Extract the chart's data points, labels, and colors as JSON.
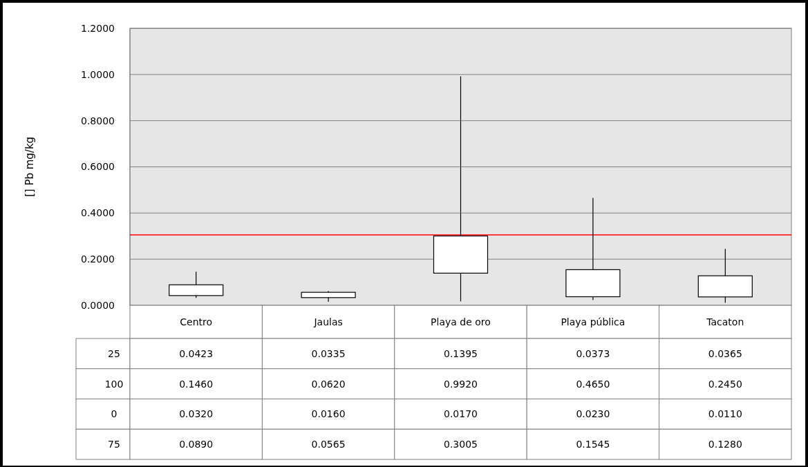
{
  "chart_data": {
    "type": "box",
    "ylabel": "[] Pb mg/kg",
    "categories": [
      "Centro",
      "Jaulas",
      "Playa de oro",
      "Playa pública",
      "Tacaton"
    ],
    "boxes": [
      {
        "low": 0.032,
        "q1": 0.0423,
        "q3": 0.089,
        "high": 0.146
      },
      {
        "low": 0.016,
        "q1": 0.0335,
        "q3": 0.0565,
        "high": 0.062
      },
      {
        "low": 0.017,
        "q1": 0.1395,
        "q3": 0.3005,
        "high": 0.992
      },
      {
        "low": 0.023,
        "q1": 0.0373,
        "q3": 0.1545,
        "high": 0.465
      },
      {
        "low": 0.011,
        "q1": 0.0365,
        "q3": 0.128,
        "high": 0.245
      }
    ],
    "ylim": [
      0,
      1.2
    ],
    "yticks": [
      {
        "value": 0,
        "label": "0.0000"
      },
      {
        "value": 0.2,
        "label": "0.2000"
      },
      {
        "value": 0.4,
        "label": "0.4000"
      },
      {
        "value": 0.6,
        "label": "0.6000"
      },
      {
        "value": 0.8,
        "label": "0.8000"
      },
      {
        "value": 1,
        "label": "1.0000"
      },
      {
        "value": 1.2,
        "label": "1.2000"
      }
    ],
    "grid": "y",
    "annotations": [
      "25",
      "100",
      "0",
      "75"
    ],
    "value_labels": [
      [
        "0.0423",
        "0.1460",
        "0.0320",
        "0.0890"
      ],
      [
        "0.0335",
        "0.0620",
        "0.0160",
        "0.0565"
      ],
      [
        "0.1395",
        "0.9920",
        "0.0170",
        "0.3005"
      ],
      [
        "0.0373",
        "0.4650",
        "0.0230",
        "0.1545"
      ],
      [
        "0.0365",
        "0.2450",
        "0.0110",
        "0.1280"
      ]
    ],
    "ref_lines": [
      {
        "axis": "y",
        "value": 0.305,
        "color": "#ff0000"
      }
    ]
  }
}
